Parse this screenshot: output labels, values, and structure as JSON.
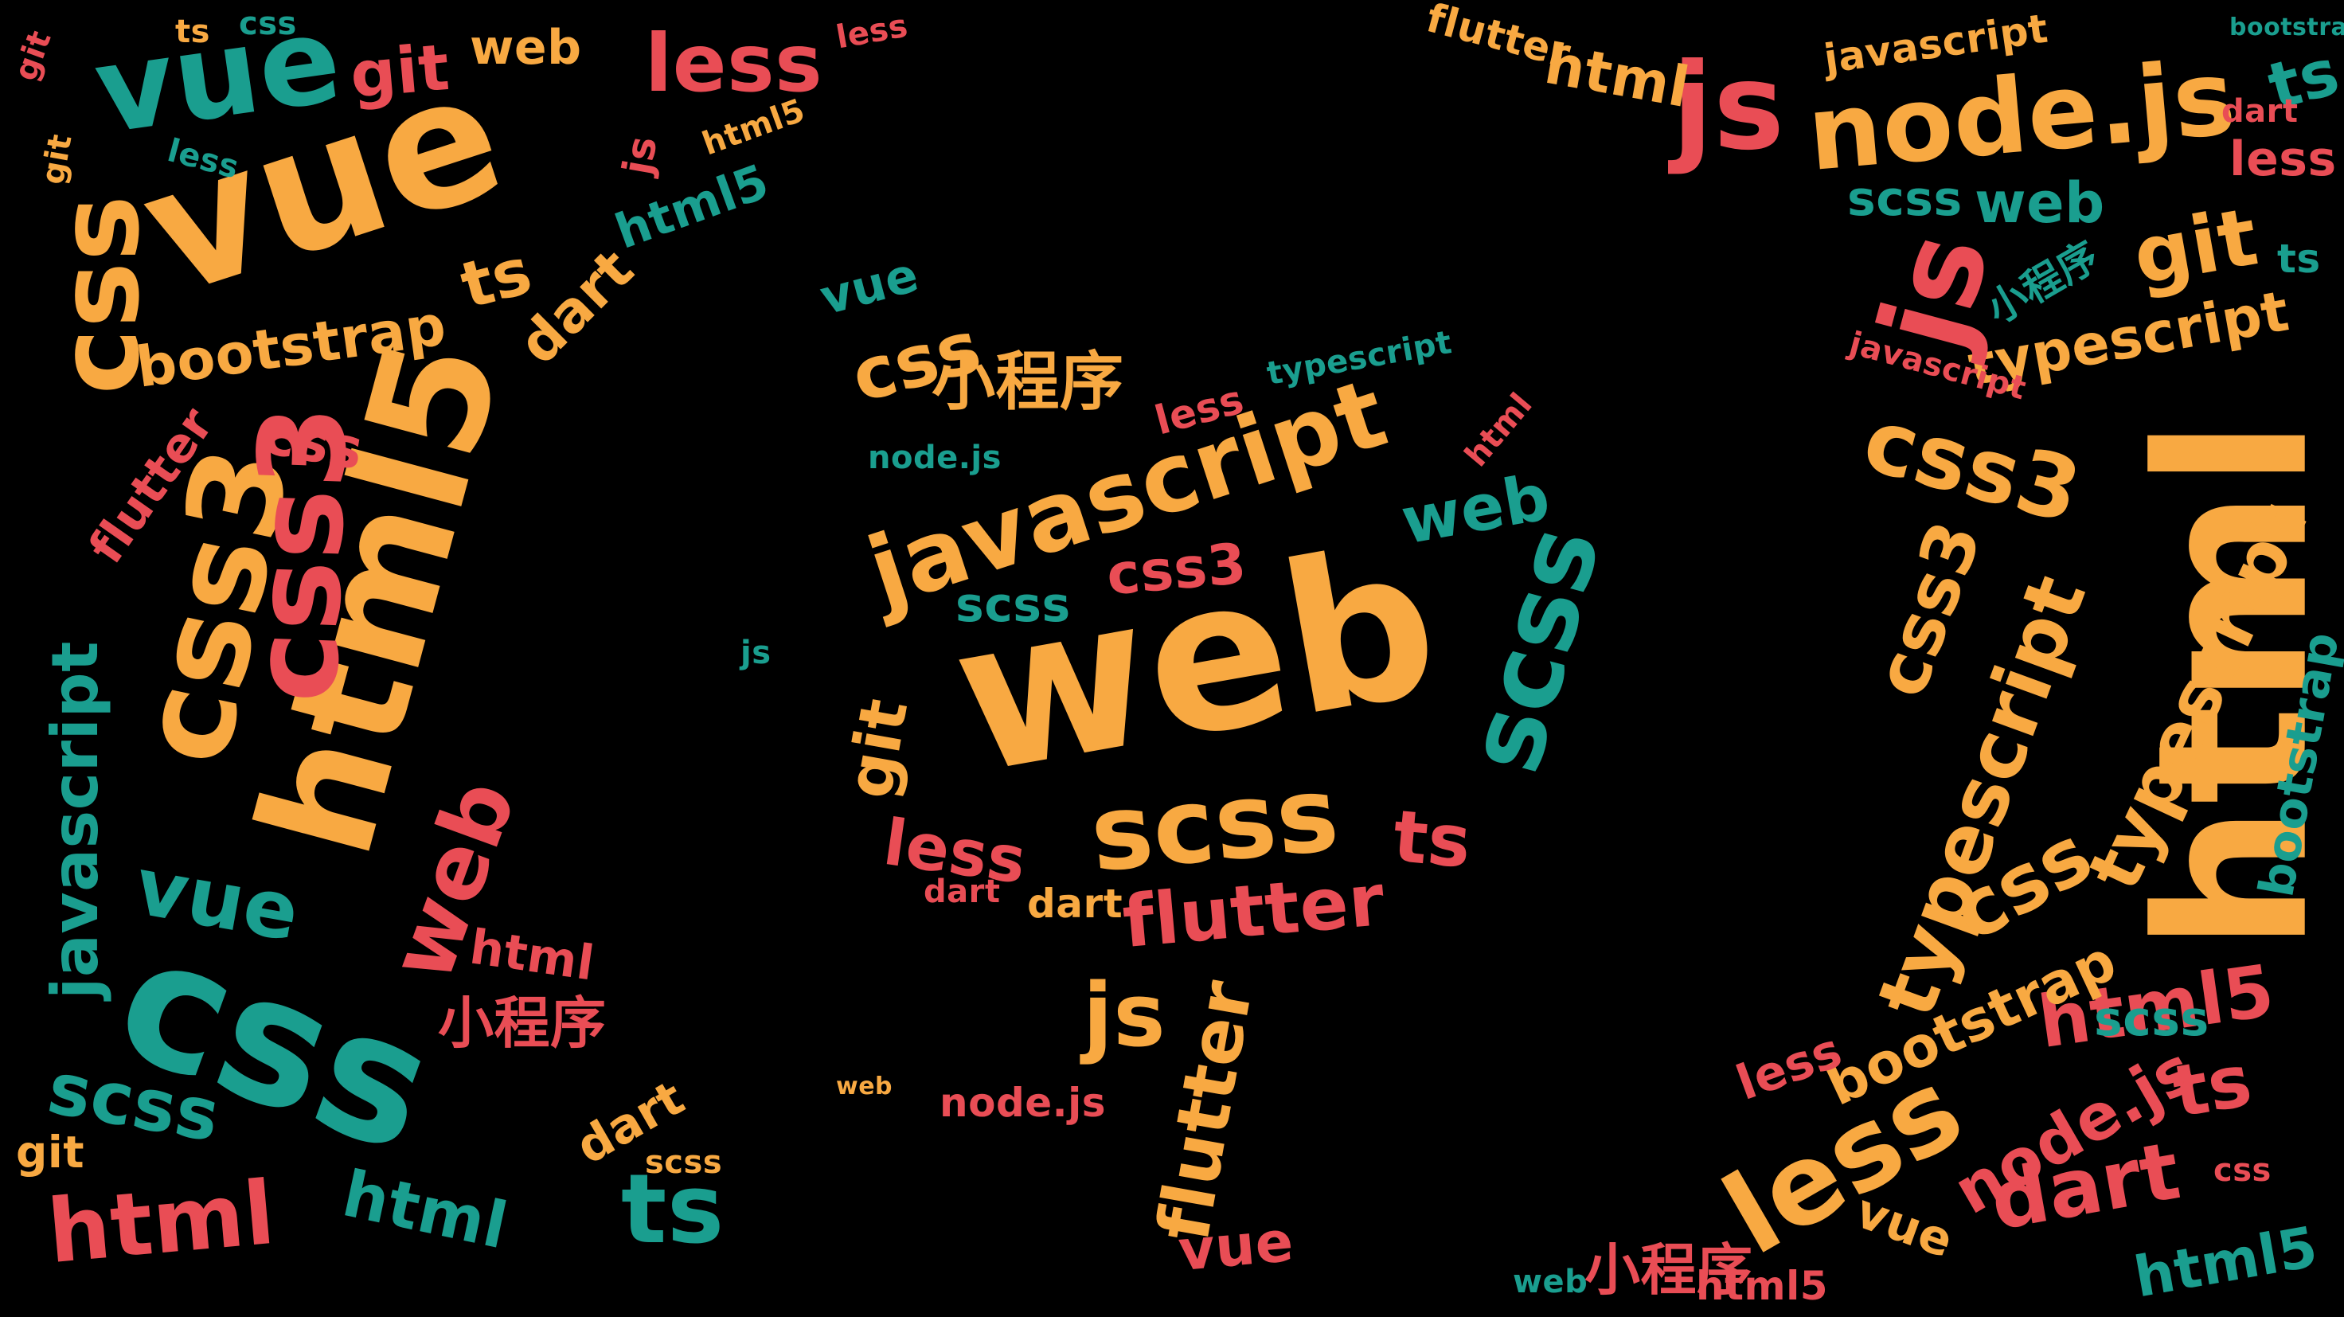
{
  "colors": {
    "orange": "#F8A942",
    "teal": "#1A9E8F",
    "red": "#E94D55",
    "background": "#000000"
  },
  "words": {
    "w01": "vue",
    "w02": "vue",
    "w03": "css",
    "w04": "html5",
    "w05": "css3",
    "w06": "css",
    "w07": "web",
    "w08": "javascript",
    "w09": "scss",
    "w10": "less",
    "w11": "js",
    "w12": "node.js",
    "w13": "html",
    "w14": "js",
    "w15": "typescript",
    "w16": "html5",
    "w17": "less",
    "w18": "dart",
    "w19": "css3",
    "w20": "typescript",
    "w21": "bootstrap",
    "w22": "git",
    "w23": "web",
    "w24": "html",
    "w25": "html",
    "w26": "scss",
    "w27": "javascript",
    "w28": "小程序",
    "w29": "flutter",
    "w30": "ts",
    "w31": "less",
    "w32": "git",
    "w33": "web",
    "w34": "ts",
    "w35": "bootstrap",
    "w36": "dart",
    "w37": "css",
    "w38": "css",
    "w39": "vue",
    "w40": "less",
    "w41": "git",
    "w42": "flutter",
    "w43": "js",
    "w44": "css",
    "w45": "ts",
    "w46": "html",
    "w47": "scss",
    "w48": "小程序",
    "w49": "html",
    "w50": "vue",
    "w51": "node.js",
    "w52": "dart",
    "w53": "dart",
    "w54": "ts",
    "w55": "less",
    "w56": "css3",
    "w57": "scss",
    "w58": "web",
    "w59": "git",
    "w60": "bootstrap",
    "w61": "typescript",
    "w62": "js",
    "w63": "flutter",
    "w64": "web",
    "w65": "dart",
    "w66": "html5",
    "w67": "小程序",
    "w68": "ts",
    "w69": "html5",
    "w70": "css3",
    "w71": "web",
    "w72": "scss",
    "w73": "less",
    "w74": "vue",
    "w75": "css",
    "w76": "git",
    "w77": "ts",
    "w78": "javascript",
    "w79": "node.js",
    "w80": "bootstrap",
    "w81": "typescript",
    "w82": "scss",
    "w83": "html5",
    "w84": "flutter",
    "w85": "css",
    "w86": "less",
    "w87": "js",
    "w88": "小程序",
    "w89": "vue",
    "w90": "dart",
    "w91": "html",
    "w92": "git",
    "w93": "scss",
    "w94": "ts",
    "w95": "css3",
    "w96": "node.js",
    "w97": "javascript",
    "w98": "web",
    "w99": "html5",
    "w100": "less"
  }
}
